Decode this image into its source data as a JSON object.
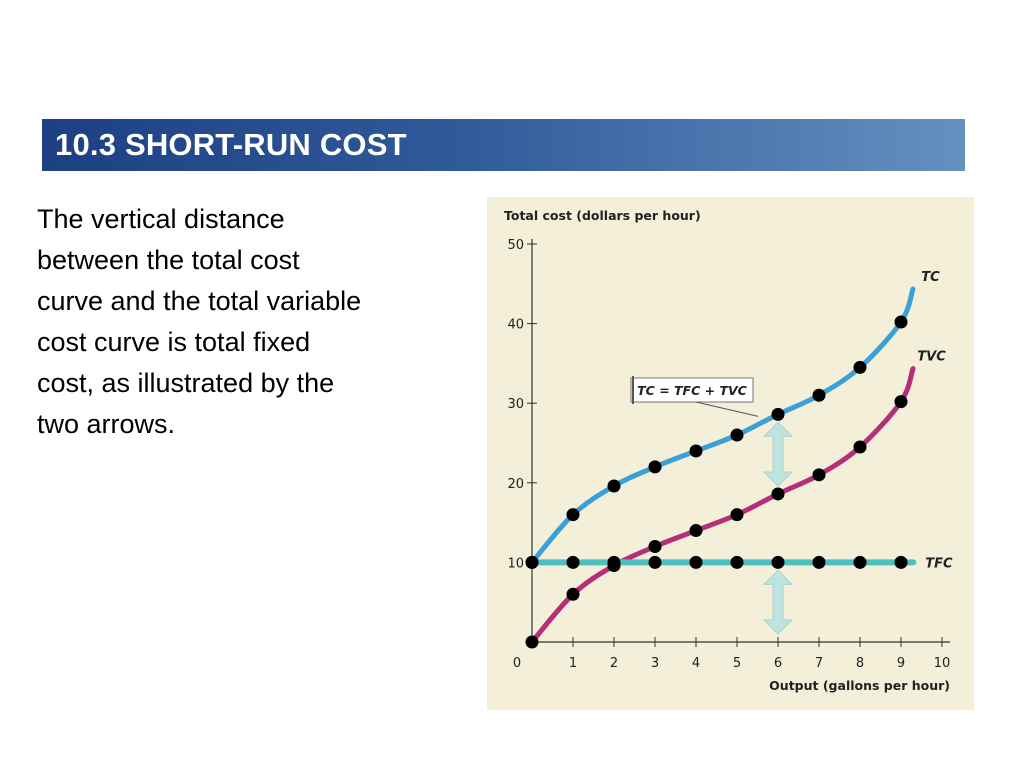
{
  "slide": {
    "title": "10.3 SHORT-RUN COST",
    "body_lines": [
      "The vertical distance",
      "between the total cost",
      "curve and the total variable",
      "cost curve is total fixed",
      "cost, as illustrated by the",
      "two arrows."
    ]
  },
  "colors": {
    "chart_background": "#f3efd9",
    "tc": "#3b9fd8",
    "tvc": "#b52e78",
    "tfc": "#4dbfbf",
    "arrow": "#bfe3df",
    "point": "#000000"
  },
  "chart_data": {
    "type": "line",
    "ylabel": "Total cost (dollars per hour)",
    "xlabel": "Output (gallons per hour)",
    "xlim": [
      0,
      10
    ],
    "ylim": [
      0,
      50
    ],
    "x_ticks": [
      "0",
      "1",
      "2",
      "3",
      "4",
      "5",
      "6",
      "7",
      "8",
      "9",
      "10"
    ],
    "y_ticks": [
      "10",
      "20",
      "30",
      "40",
      "50"
    ],
    "annotation": "TC = TFC + TVC",
    "grid": false,
    "series": [
      {
        "name": "TC",
        "x": [
          0,
          1,
          2,
          3,
          4,
          5,
          6,
          7,
          8,
          9
        ],
        "y": [
          10,
          16,
          19.6,
          22,
          24,
          26,
          28.6,
          31,
          34.5,
          40.2
        ]
      },
      {
        "name": "TVC",
        "x": [
          0,
          1,
          2,
          3,
          4,
          5,
          6,
          7,
          8,
          9
        ],
        "y": [
          0,
          6,
          9.6,
          12,
          14,
          16,
          18.6,
          21,
          24.5,
          30.2
        ]
      },
      {
        "name": "TFC",
        "x": [
          0,
          1,
          2,
          3,
          4,
          5,
          6,
          7,
          8,
          9
        ],
        "y": [
          10,
          10,
          10,
          10,
          10,
          10,
          10,
          10,
          10,
          10
        ]
      }
    ]
  }
}
